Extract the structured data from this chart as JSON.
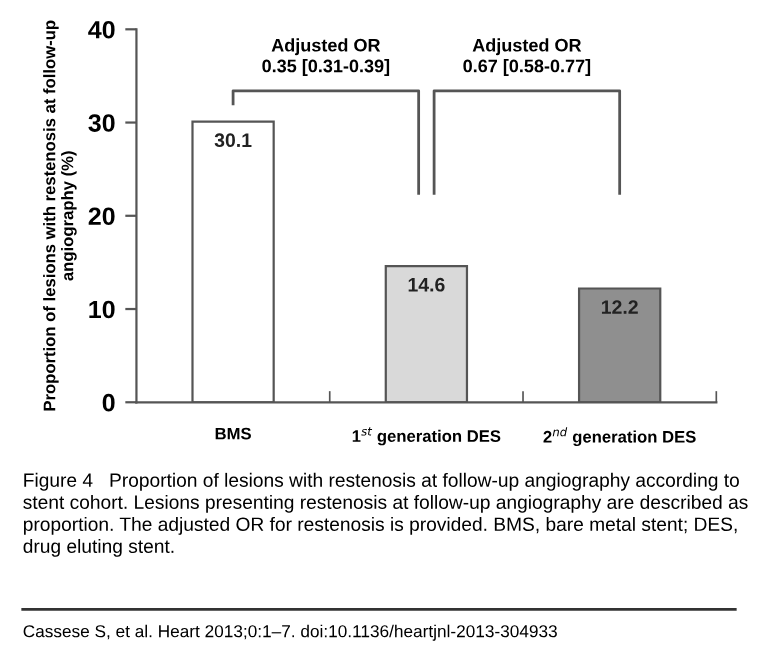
{
  "chart_data": {
    "type": "bar",
    "ylabel": "Proportion of lesions with restenosis at follow-up angiography (%)",
    "categories": [
      "BMS",
      "1$^{st}$ generation DES",
      "2$^{nd}$ generation DES"
    ],
    "values": [
      30.1,
      14.6,
      12.2
    ],
    "colors": [
      "#ffffff",
      "#d9d9d9",
      "#8f8f8f"
    ],
    "ylim": [
      0,
      40
    ],
    "yticks": [
      0,
      10,
      20,
      30,
      40
    ],
    "data_labels": true,
    "grid": false,
    "legend": false,
    "annotations": [
      "Adjusted OR\n0.35 [0.31-0.39]",
      "Adjusted OR\n0.67 [0.58-0.77]",
      "Figure 4   Proportion of lesions with restenosis at follow-up angiography according to stent cohort. Lesions presenting restenosis at follow-up angiography are described as proportion. The adjusted OR for restenosis is provided. BMS, bare metal stent; DES, drug eluting stent.",
      "Cassese S, et al. Heart 2013;0:1–7. doi:10.1136/heartjnl-2013-304933"
    ]
  }
}
